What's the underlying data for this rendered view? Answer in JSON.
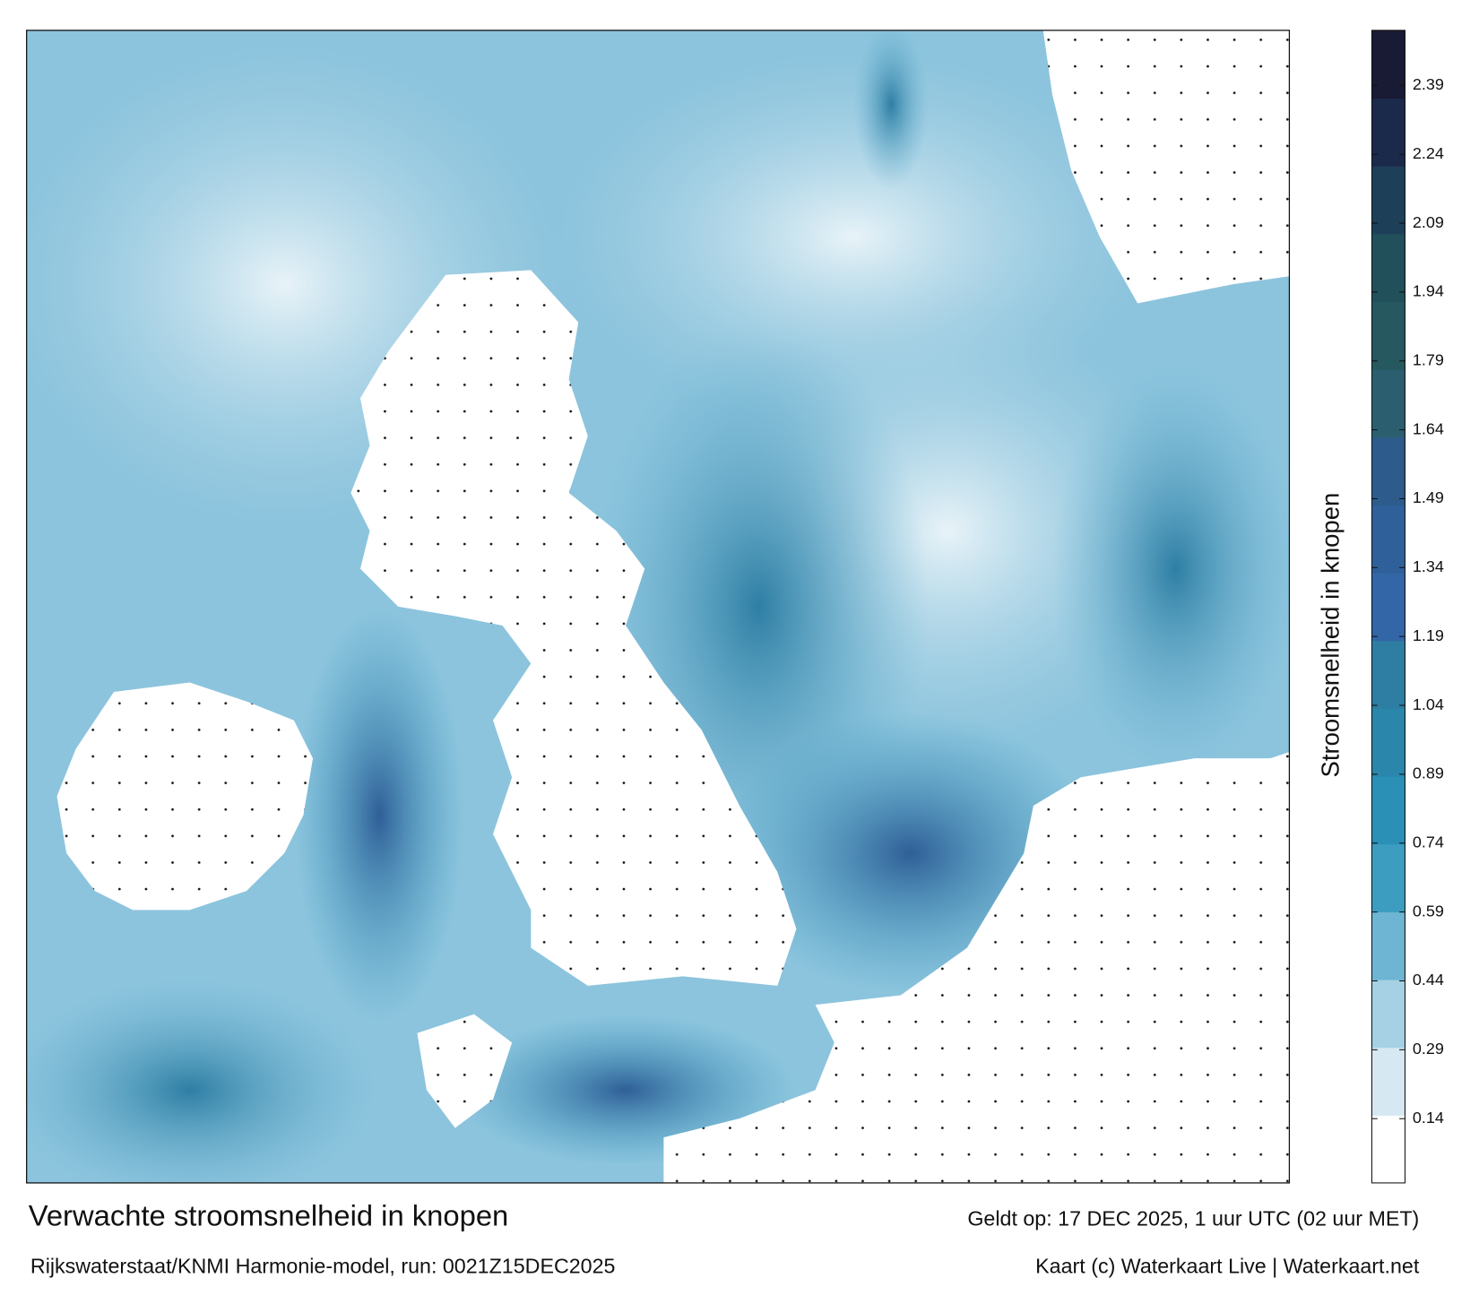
{
  "title": "Verwachte stroomsnelheid in knopen",
  "source": "Rijkswaterstaat/KNMI Harmonie-model, run: 0021Z15DEC2025",
  "valid_time": "Geldt op: 17 DEC 2025, 1 uur UTC (02 uur MET)",
  "credit": "Kaart (c) Waterkaart Live | Waterkaart.net",
  "colorbar": {
    "label": "Stroomsnelheid in knopen",
    "lim": [
      0,
      2.51
    ],
    "ticks": [
      0.14,
      0.29,
      0.44,
      0.59,
      0.74,
      0.89,
      1.04,
      1.19,
      1.34,
      1.49,
      1.64,
      1.79,
      1.94,
      2.09,
      2.24,
      2.39
    ],
    "colors": [
      "#ffffff",
      "#d6e9f2",
      "#a6d1e4",
      "#6db5d2",
      "#3d9dc1",
      "#2a90b6",
      "#2b86ab",
      "#2e7ea4",
      "#3366a6",
      "#30609a",
      "#2d5b8c",
      "#2b5f70",
      "#26585f",
      "#22505a",
      "#1e3f58",
      "#1b2a4a",
      "#191a33"
    ]
  }
}
